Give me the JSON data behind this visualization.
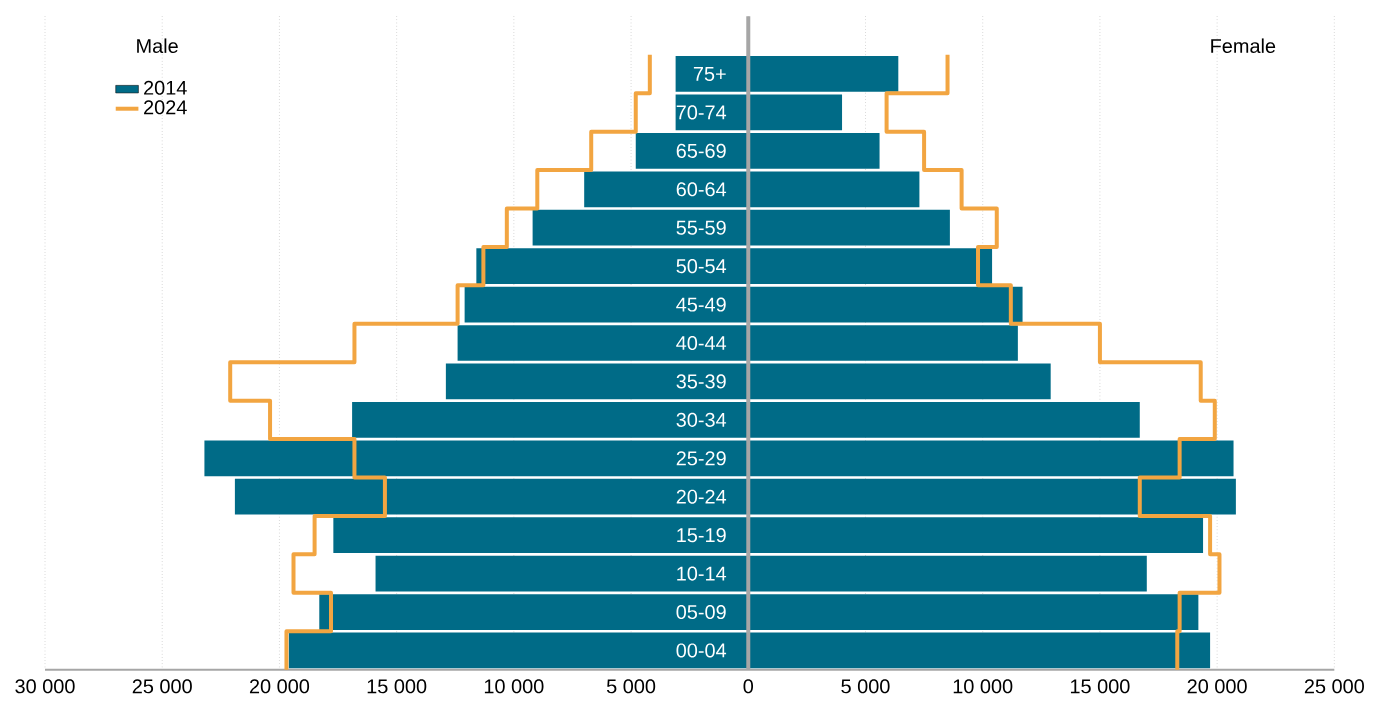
{
  "chart_data": {
    "type": "bar",
    "orientation": "horizontal",
    "stacked": true,
    "categories": [
      "75+",
      "70-74",
      "65-69",
      "60-64",
      "55-59",
      "50-54",
      "45-49",
      "40-44",
      "35-39",
      "30-34",
      "25-29",
      "20-24",
      "15-19",
      "10-14",
      "05-09",
      "00-04"
    ],
    "series": [
      {
        "name": "2014",
        "color": "#006b87",
        "values": [
          -3100,
          -3100,
          -4800,
          -7000,
          -9200,
          -11600,
          -12100,
          -12400,
          -12900,
          -16900,
          -23200,
          -21900,
          -17700,
          -15900,
          -18300,
          -19600
        ]
      },
      {
        "color": "#006b87",
        "values": [
          6400,
          4000,
          5600,
          7300,
          8600,
          10400,
          11700,
          11500,
          12900,
          16700,
          20700,
          20800,
          19400,
          17000,
          19200,
          19700
        ]
      },
      {
        "name": "2024",
        "type": "step",
        "color": "#f2a541",
        "values": [
          -4200,
          -4800,
          -6700,
          -9000,
          -10300,
          -11300,
          -12400,
          -16800,
          -22100,
          -20400,
          -16800,
          -15500,
          -18500,
          -19400,
          -17800,
          -19700
        ]
      },
      {
        "type": "step",
        "color": "#f2a541",
        "values": [
          8500,
          5900,
          7500,
          9100,
          10600,
          9800,
          11200,
          15000,
          19300,
          19900,
          18400,
          16700,
          19700,
          20100,
          18400,
          18300
        ]
      }
    ],
    "xlim": [
      -30000,
      25000
    ],
    "xticks": [
      {
        "value": -30000,
        "label": "30 000"
      },
      {
        "value": -25000,
        "label": "25 000"
      },
      {
        "value": -20000,
        "label": "20 000"
      },
      {
        "value": -15000,
        "label": "15 000"
      },
      {
        "value": -10000,
        "label": "10 000"
      },
      {
        "value": -5000,
        "label": "5 000"
      },
      {
        "value": 0,
        "label": "0"
      },
      {
        "value": 5000,
        "label": "5 000"
      },
      {
        "value": 10000,
        "label": "10 000"
      },
      {
        "value": 15000,
        "label": "15 000"
      },
      {
        "value": 20000,
        "label": "20 000"
      },
      {
        "value": 25000,
        "label": "25 000"
      }
    ],
    "grid": "x",
    "legend": "top left",
    "annotations": [
      "Male",
      "Female"
    ]
  }
}
